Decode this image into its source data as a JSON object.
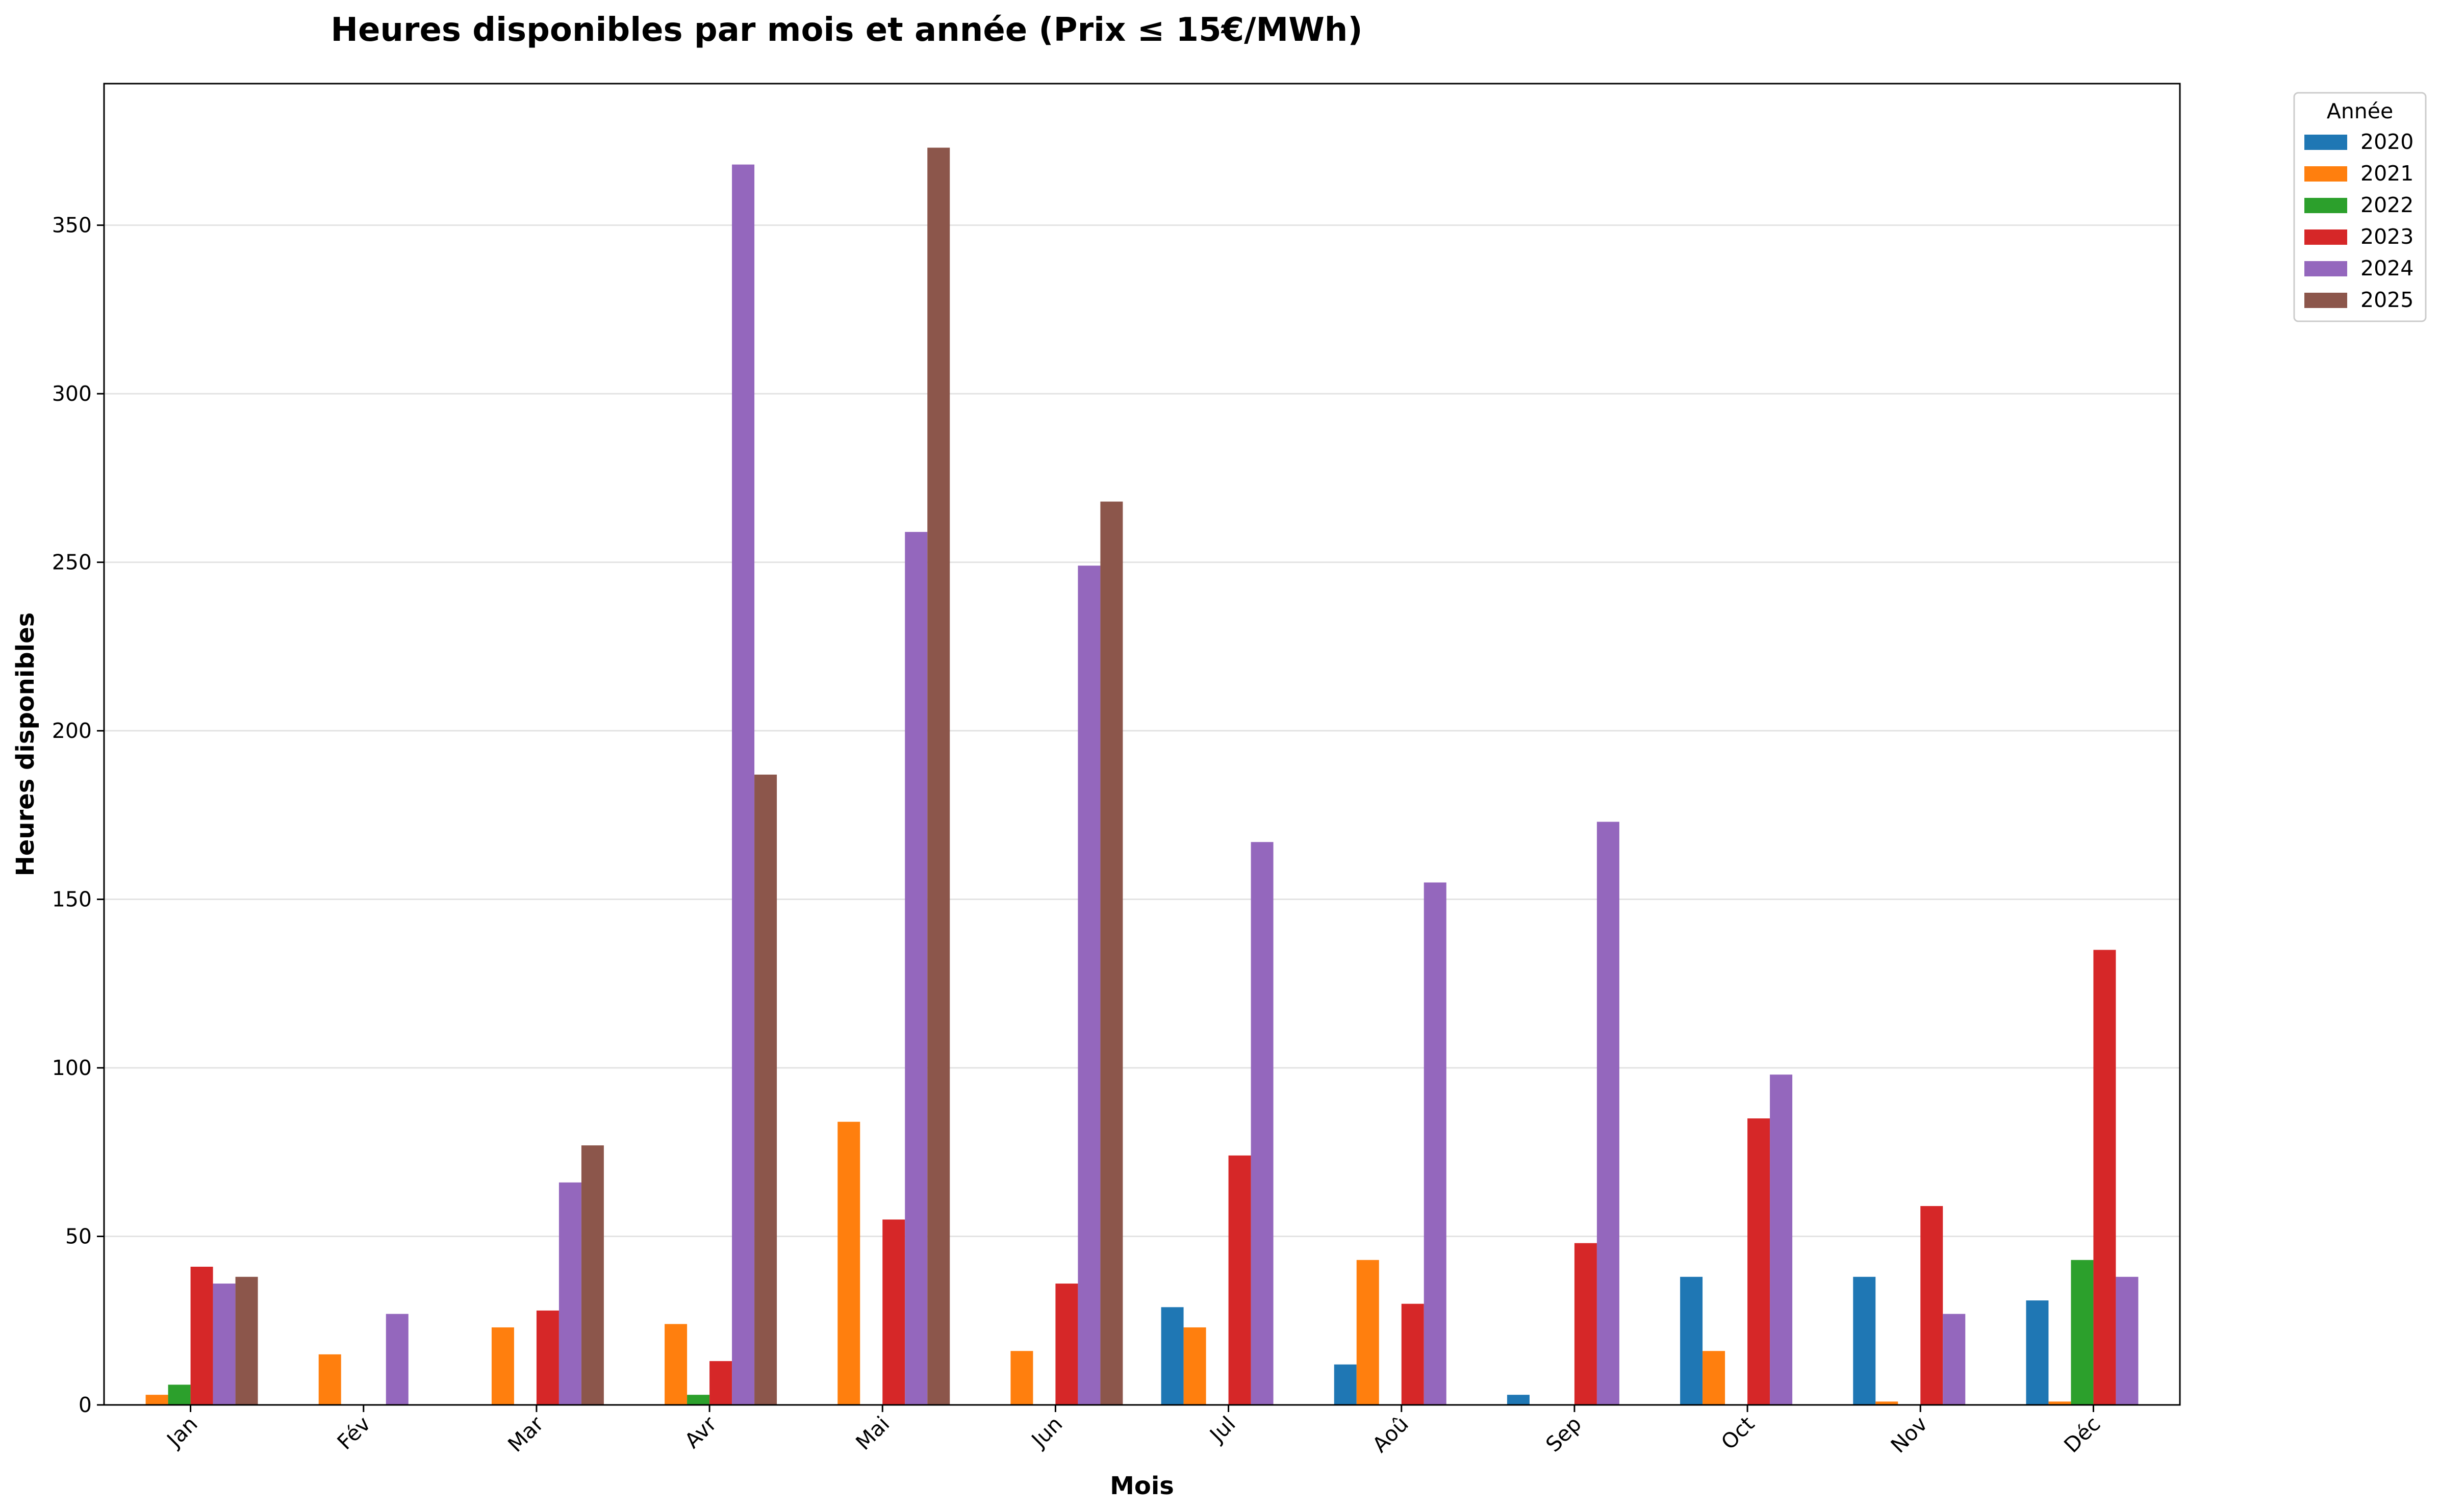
{
  "chart_data": {
    "type": "bar",
    "title": "Heures disponibles par mois et année (Prix ≤ 15€/MWh)",
    "xlabel": "Mois",
    "ylabel": "Heures disponibles",
    "categories": [
      "Jan",
      "Fév",
      "Mar",
      "Avr",
      "Mai",
      "Jun",
      "Jul",
      "Aoû",
      "Sep",
      "Oct",
      "Nov",
      "Déc"
    ],
    "yticks": [
      0,
      50,
      100,
      150,
      200,
      250,
      300,
      350
    ],
    "ylim": [
      0,
      392
    ],
    "grid": "horizontal",
    "legend": {
      "title": "Année",
      "placement": "outside-top-right"
    },
    "series": [
      {
        "name": "2020",
        "color": "#1f77b4",
        "values": [
          0,
          0,
          0,
          0,
          0,
          0,
          29,
          12,
          3,
          38,
          38,
          31
        ]
      },
      {
        "name": "2021",
        "color": "#ff7f0e",
        "values": [
          3,
          15,
          23,
          24,
          84,
          16,
          23,
          43,
          0,
          16,
          1,
          1
        ]
      },
      {
        "name": "2022",
        "color": "#2ca02c",
        "values": [
          6,
          0,
          0,
          3,
          0,
          0,
          0,
          0,
          0,
          0,
          0,
          43
        ]
      },
      {
        "name": "2023",
        "color": "#d62728",
        "values": [
          41,
          0,
          28,
          13,
          55,
          36,
          74,
          30,
          48,
          85,
          59,
          135
        ]
      },
      {
        "name": "2024",
        "color": "#9467bd",
        "values": [
          36,
          27,
          66,
          368,
          259,
          249,
          167,
          155,
          173,
          98,
          27,
          38
        ]
      },
      {
        "name": "2025",
        "color": "#8c564b",
        "values": [
          38,
          0,
          77,
          187,
          373,
          268,
          0,
          0,
          0,
          0,
          0,
          0
        ]
      }
    ]
  }
}
